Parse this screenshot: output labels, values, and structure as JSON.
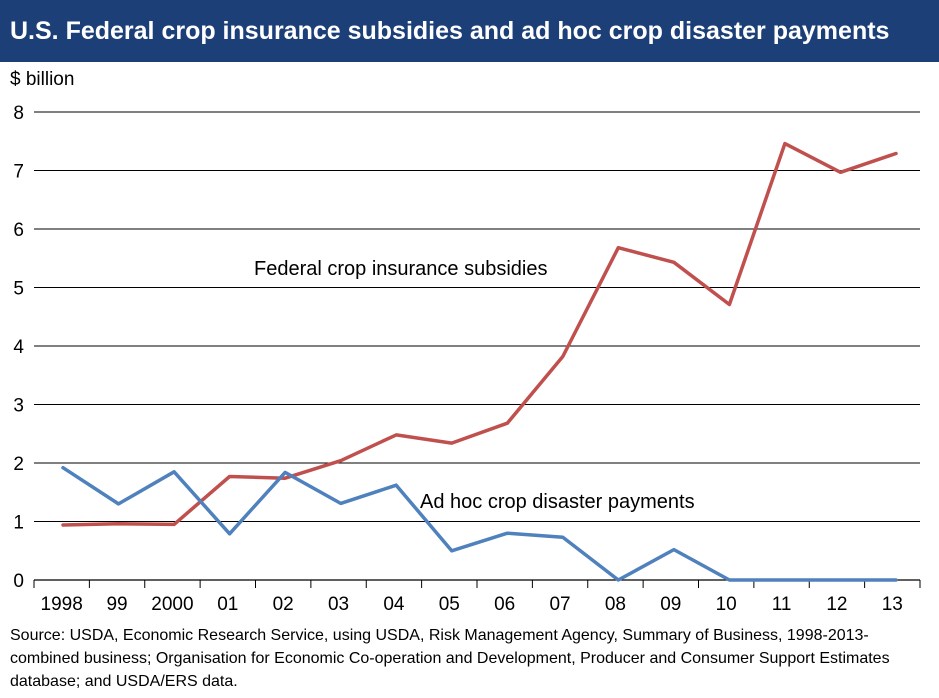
{
  "header": {
    "title": "U.S. Federal crop insurance subsidies and ad hoc crop disaster payments"
  },
  "chart_data": {
    "type": "line",
    "title": "U.S. Federal crop insurance subsidies and ad hoc crop disaster payments",
    "ylabel": "$ billion",
    "xlabel": "",
    "ylim": [
      0,
      8
    ],
    "yticks": [
      0,
      1,
      2,
      3,
      4,
      5,
      6,
      7,
      8
    ],
    "grid": true,
    "categories": [
      "1998",
      "99",
      "2000",
      "01",
      "02",
      "03",
      "04",
      "05",
      "06",
      "07",
      "08",
      "09",
      "10",
      "11",
      "12",
      "13"
    ],
    "series": [
      {
        "name": "Federal crop insurance subsidies",
        "color": "#c0504d",
        "values": [
          0.94,
          0.96,
          0.95,
          1.77,
          1.74,
          2.04,
          2.48,
          2.34,
          2.68,
          3.82,
          5.68,
          5.43,
          4.71,
          7.46,
          6.97,
          7.29
        ]
      },
      {
        "name": "Ad hoc crop disaster payments",
        "color": "#4f81bd",
        "values": [
          1.92,
          1.3,
          1.85,
          0.79,
          1.84,
          1.31,
          1.62,
          0.5,
          0.8,
          0.73,
          0.0,
          0.52,
          0.0,
          0.0,
          0.0,
          0.0
        ]
      }
    ]
  },
  "footer": {
    "source": "Source: USDA, Economic Research Service, using USDA, Risk Management Agency, Summary of Business, 1998-2013-combined business; Organisation for Economic Co-operation and Development, Producer and Consumer Support Estimates database; and USDA/ERS data."
  }
}
